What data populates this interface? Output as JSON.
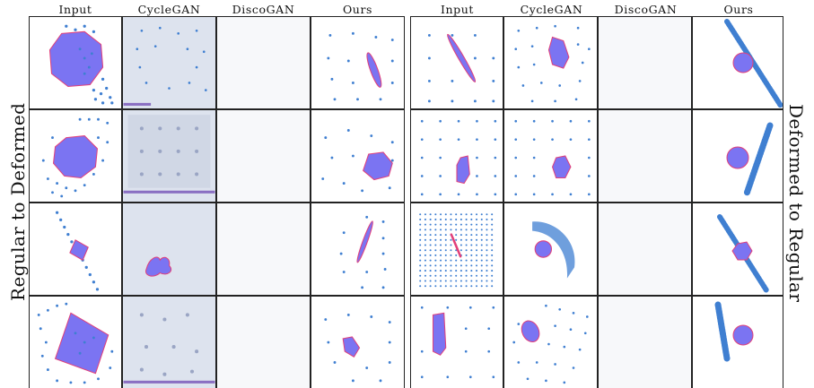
{
  "figure": {
    "left_panel": {
      "side_label": "Regular to Deformed",
      "columns": [
        "Input",
        "CycleGAN",
        "DiscoGAN",
        "Ours"
      ]
    },
    "right_panel": {
      "side_label": "Deformed to Regular",
      "columns": [
        "Input",
        "CycleGAN",
        "DiscoGAN",
        "Ours"
      ]
    }
  },
  "colors": {
    "dots": "#3f7fd1",
    "shape_fill": "#7b74f2",
    "shape_stroke": "#e2407a",
    "gan_tint": "#d9dfeb",
    "baseline_bar": "#8a6fc2"
  },
  "icons": [
    "sample-image"
  ]
}
